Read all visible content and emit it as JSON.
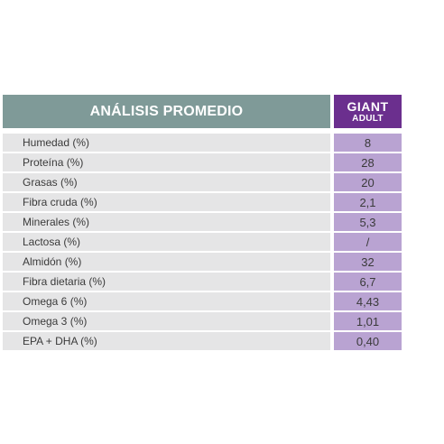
{
  "table": {
    "header": {
      "title": "ANÁLISIS PROMEDIO",
      "product_line1": "GIANT",
      "product_line2": "ADULT"
    },
    "rows": [
      {
        "label": "Humedad (%)",
        "value": "8"
      },
      {
        "label": "Proteína (%)",
        "value": "28"
      },
      {
        "label": "Grasas (%)",
        "value": "20"
      },
      {
        "label": "Fibra cruda (%)",
        "value": "2,1"
      },
      {
        "label": "Minerales (%)",
        "value": "5,3"
      },
      {
        "label": "Lactosa (%)",
        "value": "/"
      },
      {
        "label": "Almidón (%)",
        "value": "32"
      },
      {
        "label": "Fibra dietaria (%)",
        "value": "6,7"
      },
      {
        "label": "Omega 6 (%)",
        "value": "4,43"
      },
      {
        "label": "Omega 3 (%)",
        "value": "1,01"
      },
      {
        "label": "EPA + DHA (%)",
        "value": "0,40"
      }
    ]
  },
  "colors": {
    "header_gray": "#7f9a98",
    "header_purple": "#6b2f8e",
    "label_bg": "#e5e5e6",
    "value_bg": "#b9a3d2"
  }
}
